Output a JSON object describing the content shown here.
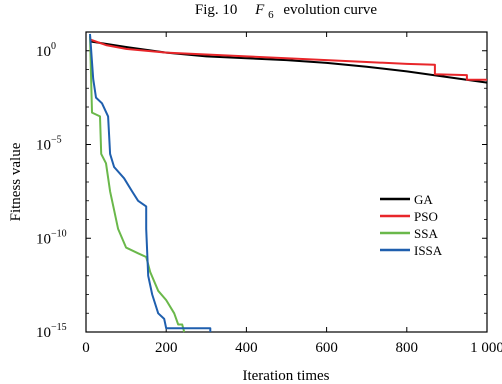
{
  "chart_data": {
    "type": "line",
    "title": {
      "prefix": "Fig. 10",
      "symbol": "F",
      "subscript": "6",
      "suffix": "evolution curve"
    },
    "xlabel": "Iteration times",
    "ylabel": "Fitness value",
    "xlim": [
      0,
      1000
    ],
    "ylim_log10": [
      -15,
      1
    ],
    "y_scale": "log",
    "x_ticks": [
      0,
      200,
      400,
      600,
      800,
      1000
    ],
    "x_tick_labels": [
      "0",
      "200",
      "400",
      "600",
      "800",
      "1 000"
    ],
    "y_ticks_exponent": [
      0,
      -5,
      -10,
      -15
    ],
    "y_tick_base": "10",
    "y_tick_exponent_labels": [
      "0",
      "−5",
      "−10",
      "−15"
    ],
    "grid": false,
    "legend_position": "right-middle",
    "series": [
      {
        "name": "GA",
        "color": "#000000",
        "points": [
          [
            10,
            0.5
          ],
          [
            100,
            0.2
          ],
          [
            200,
            -0.1
          ],
          [
            300,
            -0.3
          ],
          [
            400,
            -0.4
          ],
          [
            500,
            -0.5
          ],
          [
            600,
            -0.65
          ],
          [
            700,
            -0.85
          ],
          [
            800,
            -1.1
          ],
          [
            900,
            -1.4
          ],
          [
            1000,
            -1.7
          ]
        ]
      },
      {
        "name": "PSO",
        "color": "#e8262a",
        "points": [
          [
            10,
            0.6
          ],
          [
            50,
            0.3
          ],
          [
            100,
            0.1
          ],
          [
            200,
            -0.1
          ],
          [
            300,
            -0.2
          ],
          [
            400,
            -0.3
          ],
          [
            500,
            -0.4
          ],
          [
            600,
            -0.5
          ],
          [
            700,
            -0.6
          ],
          [
            800,
            -0.7
          ],
          [
            870,
            -0.75
          ],
          [
            870,
            -1.25
          ],
          [
            950,
            -1.3
          ],
          [
            950,
            -1.55
          ],
          [
            1000,
            -1.55
          ]
        ]
      },
      {
        "name": "SSA",
        "color": "#6ab84a",
        "points": [
          [
            10,
            0.8
          ],
          [
            15,
            -3.3
          ],
          [
            35,
            -3.5
          ],
          [
            38,
            -5.5
          ],
          [
            50,
            -6.0
          ],
          [
            60,
            -7.5
          ],
          [
            70,
            -8.5
          ],
          [
            80,
            -9.5
          ],
          [
            100,
            -10.5
          ],
          [
            130,
            -10.8
          ],
          [
            150,
            -11.0
          ],
          [
            160,
            -11.8
          ],
          [
            180,
            -12.8
          ],
          [
            200,
            -13.3
          ],
          [
            220,
            -14.0
          ],
          [
            230,
            -14.6
          ],
          [
            240,
            -14.6
          ],
          [
            245,
            -15
          ]
        ]
      },
      {
        "name": "ISSA",
        "color": "#1f5fae",
        "points": [
          [
            10,
            0.9
          ],
          [
            18,
            -1.5
          ],
          [
            25,
            -2.5
          ],
          [
            40,
            -2.8
          ],
          [
            55,
            -3.5
          ],
          [
            60,
            -5.5
          ],
          [
            70,
            -6.2
          ],
          [
            95,
            -6.8
          ],
          [
            115,
            -7.5
          ],
          [
            130,
            -8.0
          ],
          [
            150,
            -8.3
          ],
          [
            150,
            -9.5
          ],
          [
            155,
            -12.0
          ],
          [
            165,
            -13.0
          ],
          [
            180,
            -14.0
          ],
          [
            195,
            -14.3
          ],
          [
            200,
            -14.8
          ],
          [
            240,
            -14.8
          ],
          [
            310,
            -14.8
          ],
          [
            310,
            -15
          ]
        ]
      }
    ]
  }
}
